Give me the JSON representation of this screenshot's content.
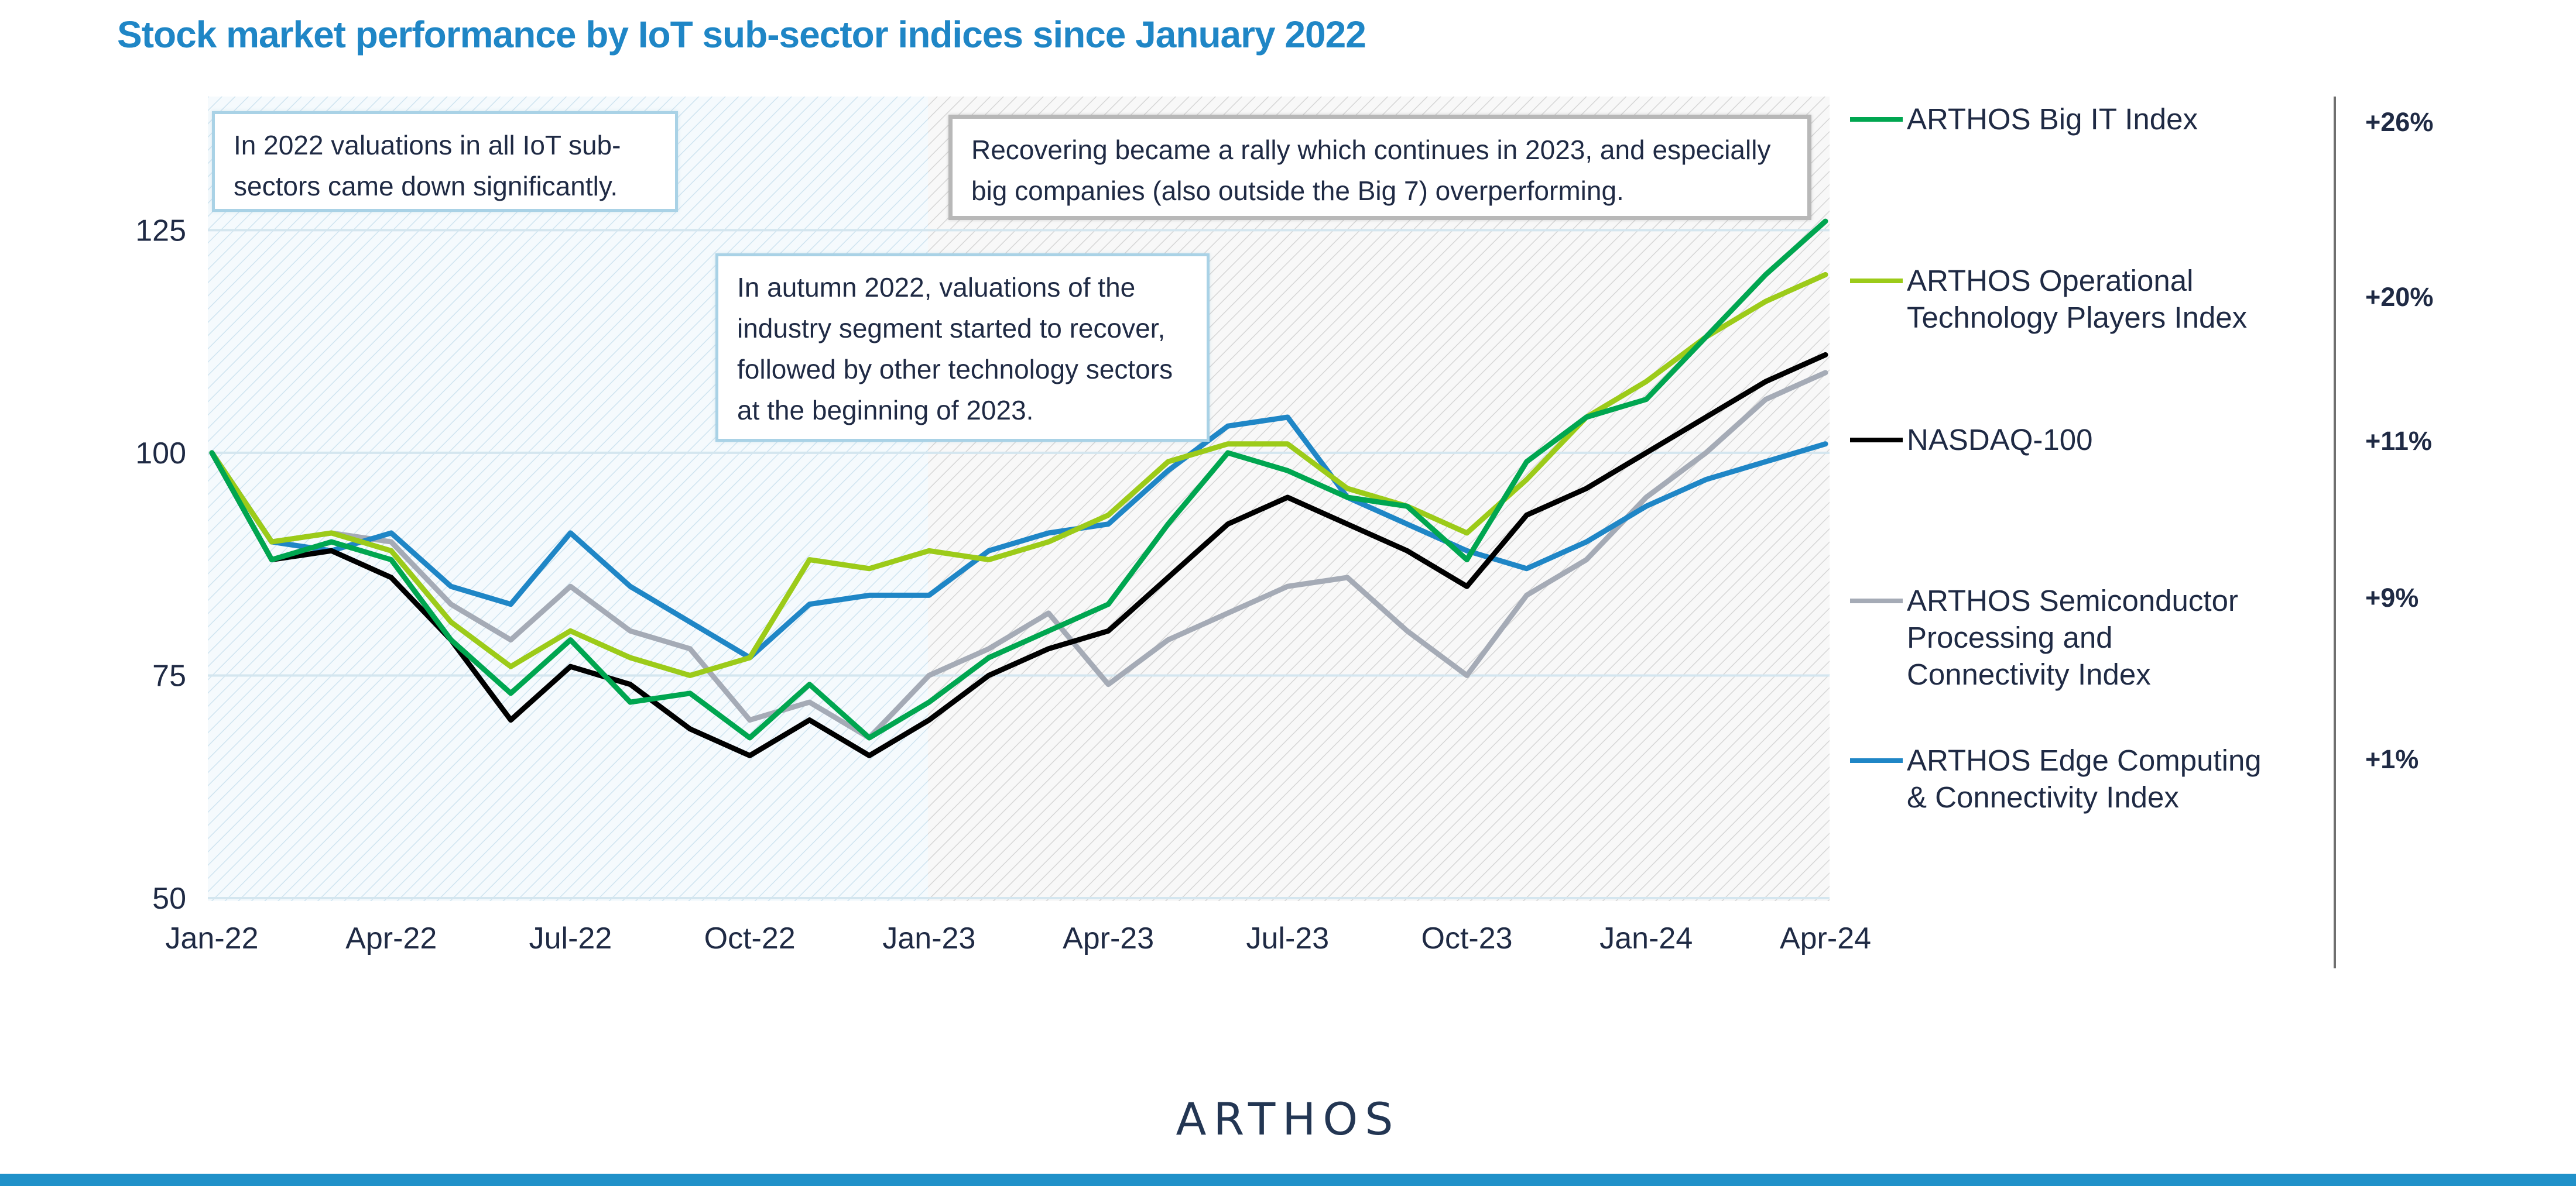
{
  "colors": {
    "big_it": "#00a650",
    "operational": "#9ccb19",
    "nasdaq": "#000000",
    "semiconductor": "#a5abb6",
    "edge": "#1f86c6",
    "title": "#1f86c6",
    "text": "#1f2a44"
  },
  "annotations": {
    "a2022": "In 2022 valuations in all IoT sub-sectors came down significantly.",
    "autumn": "In autumn 2022, valuations of the industry segment started to recover, followed by other technology sectors at the beginning of 2023.",
    "rally": "Recovering became a rally which continues in 2023, and especially big companies (also outside the Big 7) overperforming."
  },
  "brand": {
    "logo": "ARTHOS"
  },
  "chart_data": {
    "type": "line",
    "title": "Stock market performance by IoT sub-sector indices since January 2022",
    "xlabel": "",
    "ylabel": "",
    "x_ticks": [
      "Jan-22",
      "Apr-22",
      "Jul-22",
      "Oct-22",
      "Jan-23",
      "Apr-23",
      "Jul-23",
      "Oct-23",
      "Jan-24",
      "Apr-24"
    ],
    "y_ticks": [
      50,
      75,
      100,
      125
    ],
    "ylim": [
      50,
      140
    ],
    "grid": "horizontal",
    "legend_position": "right",
    "shaded_periods": [
      "Jan-22 to Jan-23",
      "Jan-23 to Apr-24"
    ],
    "x": [
      "2022-01",
      "2022-02",
      "2022-03",
      "2022-04",
      "2022-05",
      "2022-06",
      "2022-07",
      "2022-08",
      "2022-09",
      "2022-10",
      "2022-11",
      "2022-12",
      "2023-01",
      "2023-02",
      "2023-03",
      "2023-04",
      "2023-05",
      "2023-06",
      "2023-07",
      "2023-08",
      "2023-09",
      "2023-10",
      "2023-11",
      "2023-12",
      "2024-01",
      "2024-02",
      "2024-03",
      "2024-04"
    ],
    "series": [
      {
        "name": "ARTHOS Big IT Index",
        "final_change": "+26%",
        "color_key": "big_it",
        "values": [
          100,
          88,
          90,
          88,
          79,
          73,
          79,
          72,
          73,
          68,
          74,
          68,
          72,
          77,
          80,
          83,
          92,
          100,
          98,
          95,
          94,
          88,
          99,
          104,
          106,
          113,
          120,
          126
        ]
      },
      {
        "name": "ARTHOS Operational Technology Players Index",
        "final_change": "+20%",
        "color_key": "operational",
        "values": [
          100,
          90,
          91,
          89,
          81,
          76,
          80,
          77,
          75,
          77,
          88,
          87,
          89,
          88,
          90,
          93,
          99,
          101,
          101,
          96,
          94,
          91,
          97,
          104,
          108,
          113,
          117,
          120
        ]
      },
      {
        "name": "NASDAQ-100",
        "final_change": "+11%",
        "color_key": "nasdaq",
        "values": [
          100,
          88,
          89,
          86,
          79,
          70,
          76,
          74,
          69,
          66,
          70,
          66,
          70,
          75,
          78,
          80,
          86,
          92,
          95,
          92,
          89,
          85,
          93,
          96,
          100,
          104,
          108,
          111
        ]
      },
      {
        "name": "ARTHOS Semiconductor Processing and Connectivity Index",
        "final_change": "+9%",
        "color_key": "semiconductor",
        "values": [
          100,
          90,
          91,
          90,
          83,
          79,
          85,
          80,
          78,
          70,
          72,
          68,
          75,
          78,
          82,
          74,
          79,
          82,
          85,
          86,
          80,
          75,
          84,
          88,
          95,
          100,
          106,
          109
        ]
      },
      {
        "name": "ARTHOS Edge Computing & Connectivity Index",
        "final_change": "+1%",
        "color_key": "edge",
        "values": [
          100,
          90,
          89,
          91,
          85,
          83,
          91,
          85,
          81,
          77,
          83,
          84,
          84,
          89,
          91,
          92,
          98,
          103,
          104,
          95,
          92,
          89,
          87,
          90,
          94,
          97,
          99,
          101
        ]
      }
    ]
  }
}
